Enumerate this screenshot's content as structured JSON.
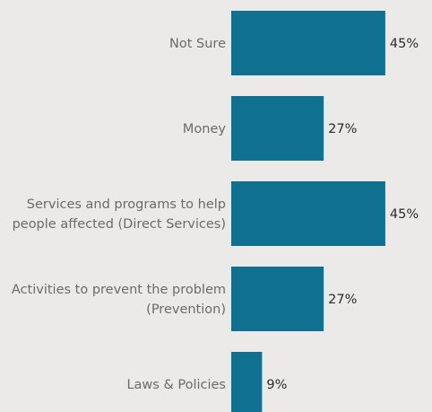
{
  "chart_data": {
    "type": "bar",
    "orientation": "horizontal",
    "categories": [
      [
        "Not Sure"
      ],
      [
        "Money"
      ],
      [
        "Services and programs to help",
        "people affected (Direct Services)"
      ],
      [
        "Activities to prevent the problem",
        "(Prevention)"
      ],
      [
        "Laws & Policies"
      ]
    ],
    "values": [
      45,
      27,
      45,
      27,
      9
    ],
    "value_labels": [
      "45%",
      "27%",
      "45%",
      "27%",
      "9%"
    ],
    "title": "",
    "xlabel": "",
    "ylabel": "",
    "xlim": [
      0,
      45
    ],
    "grid": false,
    "bar_color": "#0f7090"
  }
}
